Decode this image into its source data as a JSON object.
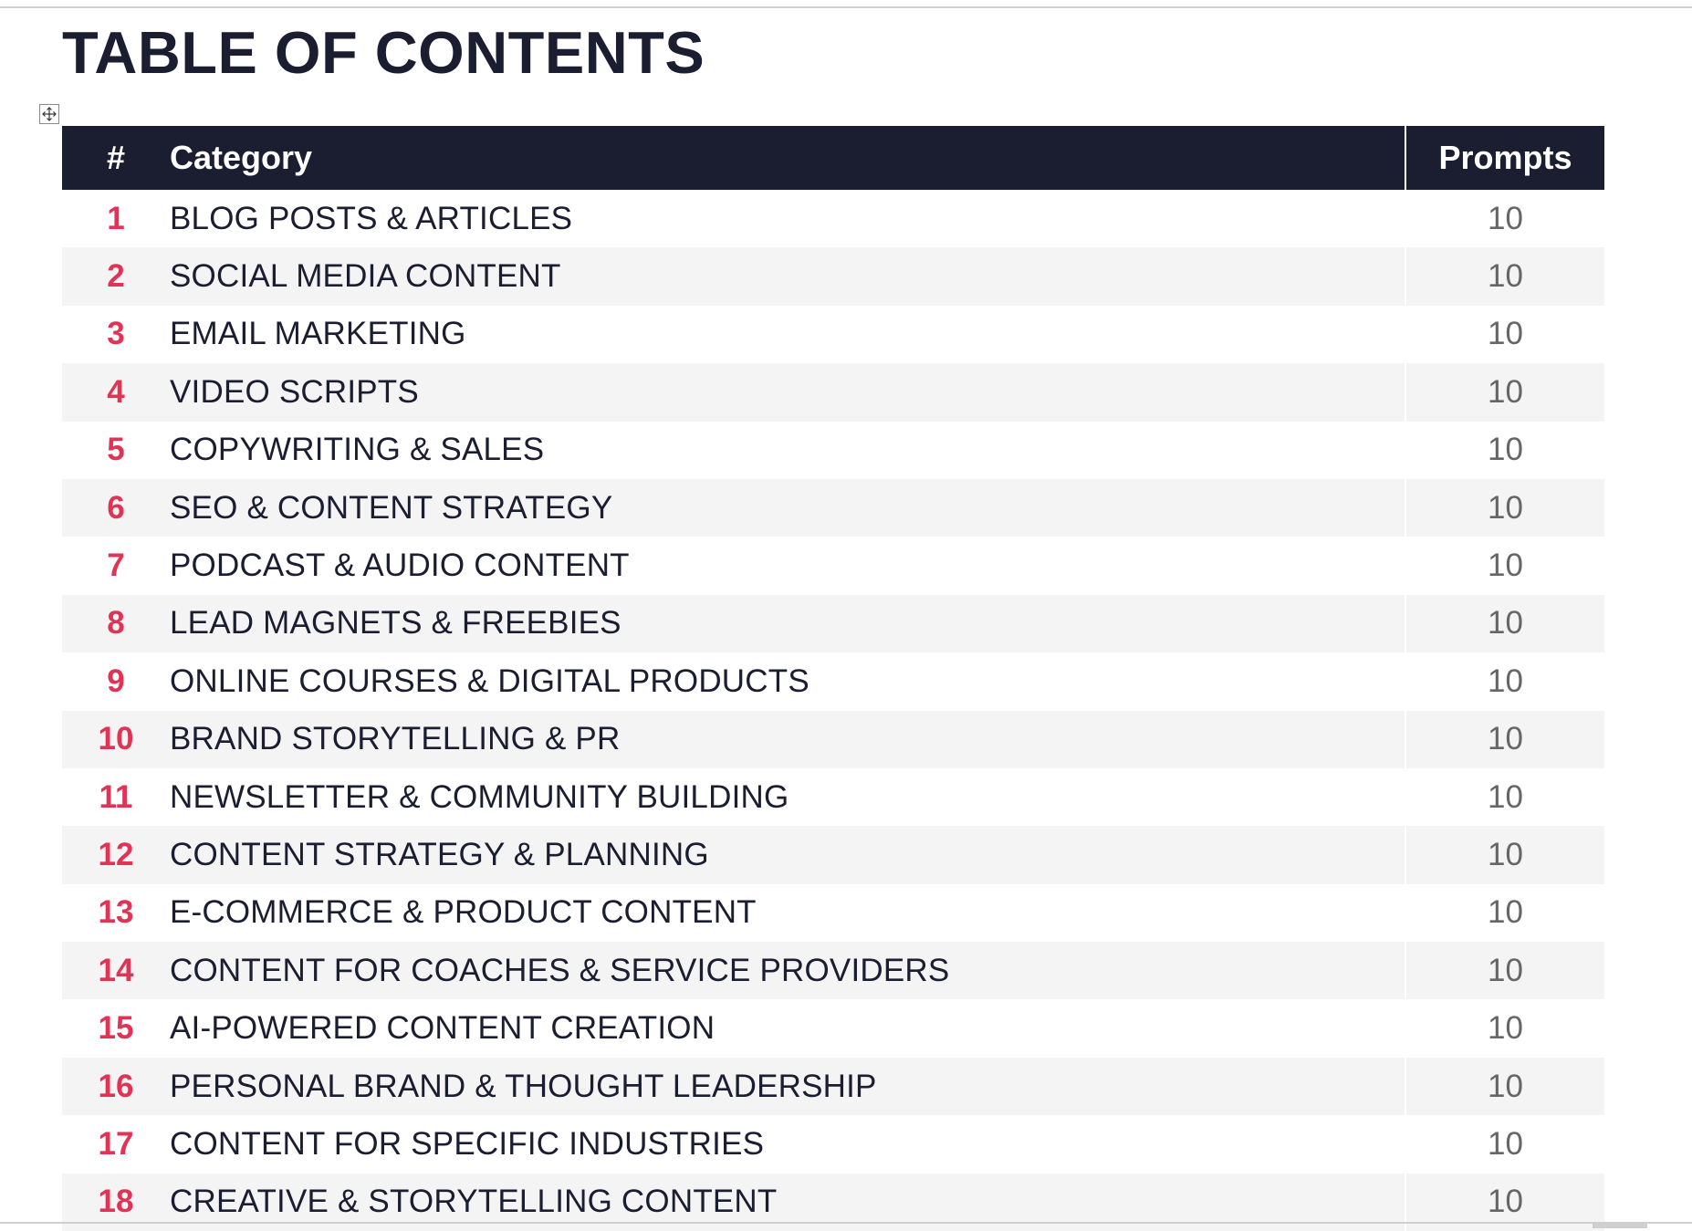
{
  "document": {
    "title": "TABLE OF CONTENTS"
  },
  "table": {
    "headers": {
      "number": "#",
      "category": "Category",
      "prompts": "Prompts"
    },
    "rows": [
      {
        "num": "1",
        "category": "BLOG POSTS & ARTICLES",
        "prompts": "10"
      },
      {
        "num": "2",
        "category": "SOCIAL MEDIA CONTENT",
        "prompts": "10"
      },
      {
        "num": "3",
        "category": "EMAIL MARKETING",
        "prompts": "10"
      },
      {
        "num": "4",
        "category": "VIDEO SCRIPTS",
        "prompts": "10"
      },
      {
        "num": "5",
        "category": "COPYWRITING & SALES",
        "prompts": "10"
      },
      {
        "num": "6",
        "category": "SEO & CONTENT STRATEGY",
        "prompts": "10"
      },
      {
        "num": "7",
        "category": "PODCAST & AUDIO CONTENT",
        "prompts": "10"
      },
      {
        "num": "8",
        "category": "LEAD MAGNETS & FREEBIES",
        "prompts": "10"
      },
      {
        "num": "9",
        "category": "ONLINE COURSES & DIGITAL PRODUCTS",
        "prompts": "10"
      },
      {
        "num": "10",
        "category": "BRAND STORYTELLING & PR",
        "prompts": "10"
      },
      {
        "num": "11",
        "category": "NEWSLETTER & COMMUNITY BUILDING",
        "prompts": "10"
      },
      {
        "num": "12",
        "category": "CONTENT STRATEGY & PLANNING",
        "prompts": "10"
      },
      {
        "num": "13",
        "category": "E-COMMERCE & PRODUCT CONTENT",
        "prompts": "10"
      },
      {
        "num": "14",
        "category": "CONTENT FOR COACHES & SERVICE PROVIDERS",
        "prompts": "10"
      },
      {
        "num": "15",
        "category": "AI-POWERED CONTENT CREATION",
        "prompts": "10"
      },
      {
        "num": "16",
        "category": "PERSONAL BRAND & THOUGHT LEADERSHIP",
        "prompts": "10"
      },
      {
        "num": "17",
        "category": "CONTENT FOR SPECIFIC INDUSTRIES",
        "prompts": "10"
      },
      {
        "num": "18",
        "category": "CREATIVE & STORYTELLING CONTENT",
        "prompts": "10"
      }
    ]
  },
  "icons": {
    "table_handle": "move-icon"
  },
  "colors": {
    "header_bg": "#1b1d30",
    "header_text": "#ffffff",
    "number_accent": "#e03355",
    "category_text": "#1b1d30",
    "prompts_text": "#666666",
    "alt_row_bg": "#f4f4f4"
  }
}
